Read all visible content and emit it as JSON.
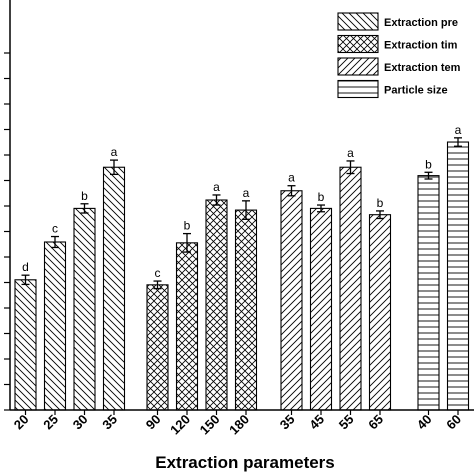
{
  "chart_data": {
    "type": "bar",
    "title": "",
    "xlabel": "Extraction parameters",
    "ylabel": "",
    "ylim": [
      0,
      1
    ],
    "grid": false,
    "legend_position": "top-right",
    "groups": [
      {
        "name": "Extraction pre",
        "pattern": "diag-down",
        "categories": [
          "20",
          "25",
          "30",
          "35"
        ],
        "values": [
          0.31,
          0.4,
          0.48,
          0.578
        ],
        "errors": [
          0.011,
          0.013,
          0.011,
          0.017
        ],
        "letters": [
          "d",
          "c",
          "b",
          "a"
        ]
      },
      {
        "name": "Extraction tim",
        "pattern": "crosshatch",
        "categories": [
          "90",
          "120",
          "150",
          "180"
        ],
        "values": [
          0.298,
          0.398,
          0.5,
          0.476
        ],
        "errors": [
          0.009,
          0.022,
          0.012,
          0.022
        ],
        "letters": [
          "c",
          "b",
          "a",
          "a"
        ]
      },
      {
        "name": "Extraction tem",
        "pattern": "diag-up",
        "categories": [
          "35",
          "45",
          "55",
          "65"
        ],
        "values": [
          0.522,
          0.48,
          0.578,
          0.465
        ],
        "errors": [
          0.012,
          0.008,
          0.015,
          0.009
        ],
        "letters": [
          "a",
          "b",
          "a",
          "b"
        ]
      },
      {
        "name": "Particle size",
        "pattern": "horizontal",
        "categories": [
          "40",
          "60"
        ],
        "values": [
          0.558,
          0.638
        ],
        "errors": [
          0.008,
          0.01
        ],
        "letters": [
          "b",
          "a"
        ]
      }
    ]
  }
}
